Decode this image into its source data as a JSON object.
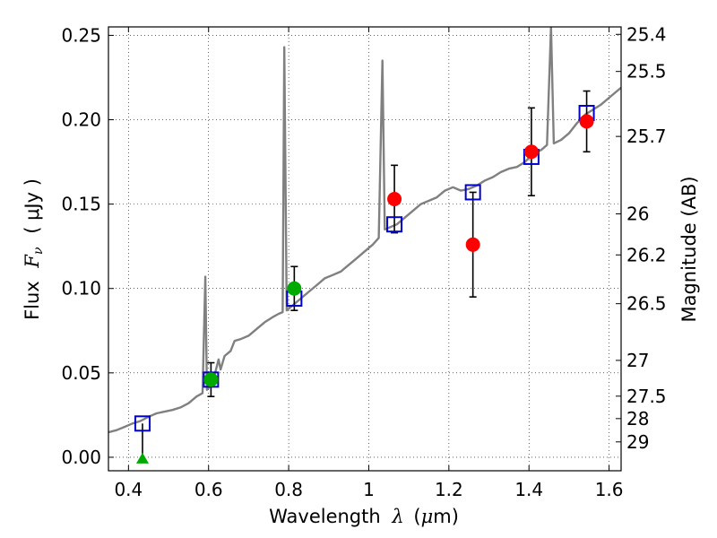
{
  "chart_data": {
    "type": "scatter",
    "xlabel_prefix": "Wavelength",
    "xlabel_symbol": "λ",
    "xlabel_unit_open": "(",
    "xlabel_unit_mu": "μ",
    "xlabel_unit_rest": "m)",
    "ylabel_prefix": "Flux",
    "ylabel_symbol": "F",
    "ylabel_sub": "ν",
    "ylabel_unit": "( μJy )",
    "y2label": "Magnitude (AB)",
    "xlim": [
      0.35,
      1.63
    ],
    "ylim": [
      -0.008,
      0.255
    ],
    "grid": true,
    "x_ticks": [
      {
        "v": 0.4,
        "label": "0.4"
      },
      {
        "v": 0.6,
        "label": "0.6"
      },
      {
        "v": 0.8,
        "label": "0.8"
      },
      {
        "v": 1.0,
        "label": "1"
      },
      {
        "v": 1.2,
        "label": "1.2"
      },
      {
        "v": 1.4,
        "label": "1.4"
      },
      {
        "v": 1.6,
        "label": "1.6"
      }
    ],
    "y_ticks": [
      {
        "v": 0.0,
        "label": "0.00"
      },
      {
        "v": 0.05,
        "label": "0.05"
      },
      {
        "v": 0.1,
        "label": "0.10"
      },
      {
        "v": 0.15,
        "label": "0.15"
      },
      {
        "v": 0.2,
        "label": "0.20"
      },
      {
        "v": 0.25,
        "label": "0.25"
      }
    ],
    "y2_ticks": [
      {
        "label": "25.4",
        "flux": 0.2506
      },
      {
        "label": "25.5",
        "flux": 0.2286
      },
      {
        "label": "25.7",
        "flux": 0.1901
      },
      {
        "label": "26",
        "flux": 0.1442
      },
      {
        "label": "26.2",
        "flux": 0.1199
      },
      {
        "label": "26.5",
        "flux": 0.091
      },
      {
        "label": "27",
        "flux": 0.0574
      },
      {
        "label": "27.5",
        "flux": 0.0362
      },
      {
        "label": "28",
        "flux": 0.0229
      },
      {
        "label": "29",
        "flux": 0.0091
      }
    ],
    "series": [
      {
        "kind": "model_spectrum",
        "color": "#808080",
        "points": [
          [
            0.35,
            0.0148
          ],
          [
            0.37,
            0.016
          ],
          [
            0.39,
            0.018
          ],
          [
            0.41,
            0.02
          ],
          [
            0.43,
            0.0215
          ],
          [
            0.45,
            0.024
          ],
          [
            0.47,
            0.026
          ],
          [
            0.49,
            0.027
          ],
          [
            0.51,
            0.028
          ],
          [
            0.53,
            0.0295
          ],
          [
            0.55,
            0.032
          ],
          [
            0.57,
            0.036
          ],
          [
            0.585,
            0.038
          ],
          [
            0.592,
            0.107
          ],
          [
            0.596,
            0.04
          ],
          [
            0.61,
            0.044
          ],
          [
            0.625,
            0.058
          ],
          [
            0.63,
            0.052
          ],
          [
            0.64,
            0.06
          ],
          [
            0.655,
            0.063
          ],
          [
            0.665,
            0.069
          ],
          [
            0.68,
            0.07
          ],
          [
            0.7,
            0.072
          ],
          [
            0.72,
            0.076
          ],
          [
            0.74,
            0.08
          ],
          [
            0.76,
            0.083
          ],
          [
            0.775,
            0.085
          ],
          [
            0.785,
            0.086
          ],
          [
            0.789,
            0.243
          ],
          [
            0.795,
            0.087
          ],
          [
            0.81,
            0.09
          ],
          [
            0.83,
            0.094
          ],
          [
            0.85,
            0.098
          ],
          [
            0.87,
            0.102
          ],
          [
            0.89,
            0.106
          ],
          [
            0.91,
            0.108
          ],
          [
            0.93,
            0.11
          ],
          [
            0.95,
            0.114
          ],
          [
            0.97,
            0.118
          ],
          [
            0.99,
            0.122
          ],
          [
            1.01,
            0.126
          ],
          [
            1.025,
            0.13
          ],
          [
            1.034,
            0.235
          ],
          [
            1.04,
            0.135
          ],
          [
            1.05,
            0.136
          ],
          [
            1.07,
            0.138
          ],
          [
            1.09,
            0.142
          ],
          [
            1.11,
            0.146
          ],
          [
            1.13,
            0.15
          ],
          [
            1.15,
            0.152
          ],
          [
            1.17,
            0.154
          ],
          [
            1.19,
            0.158
          ],
          [
            1.21,
            0.16
          ],
          [
            1.23,
            0.158
          ],
          [
            1.25,
            0.159
          ],
          [
            1.27,
            0.161
          ],
          [
            1.29,
            0.164
          ],
          [
            1.31,
            0.166
          ],
          [
            1.33,
            0.169
          ],
          [
            1.35,
            0.171
          ],
          [
            1.37,
            0.172
          ],
          [
            1.39,
            0.175
          ],
          [
            1.41,
            0.18
          ],
          [
            1.43,
            0.182
          ],
          [
            1.445,
            0.185
          ],
          [
            1.455,
            0.255
          ],
          [
            1.462,
            0.186
          ],
          [
            1.48,
            0.188
          ],
          [
            1.5,
            0.192
          ],
          [
            1.52,
            0.198
          ],
          [
            1.54,
            0.203
          ],
          [
            1.56,
            0.206
          ],
          [
            1.58,
            0.209
          ],
          [
            1.6,
            0.213
          ],
          [
            1.62,
            0.217
          ],
          [
            1.63,
            0.219
          ]
        ]
      },
      {
        "kind": "model_photometry",
        "marker": "open-square",
        "color": "#0000cc",
        "points": [
          [
            0.435,
            0.02
          ],
          [
            0.606,
            0.046
          ],
          [
            0.814,
            0.094
          ],
          [
            1.064,
            0.138
          ],
          [
            1.26,
            0.157
          ],
          [
            1.406,
            0.178
          ],
          [
            1.544,
            0.204
          ]
        ]
      },
      {
        "kind": "observed_green",
        "marker": "filled-circle",
        "color": "#00aa00",
        "points": [
          {
            "x": 0.606,
            "y": 0.046,
            "err": 0.01
          },
          {
            "x": 0.814,
            "y": 0.1,
            "err": 0.013
          }
        ]
      },
      {
        "kind": "upper_limit_green",
        "marker": "filled-triangle",
        "color": "#00aa00",
        "points": [
          {
            "x": 0.435,
            "y": -0.001,
            "top": 0.02
          }
        ]
      },
      {
        "kind": "observed_red",
        "marker": "filled-circle",
        "color": "#ff0000",
        "points": [
          {
            "x": 1.064,
            "y": 0.153,
            "err": 0.02
          },
          {
            "x": 1.26,
            "y": 0.126,
            "err": 0.031
          },
          {
            "x": 1.406,
            "y": 0.181,
            "err": 0.026
          },
          {
            "x": 1.544,
            "y": 0.199,
            "err": 0.018
          }
        ]
      }
    ]
  }
}
